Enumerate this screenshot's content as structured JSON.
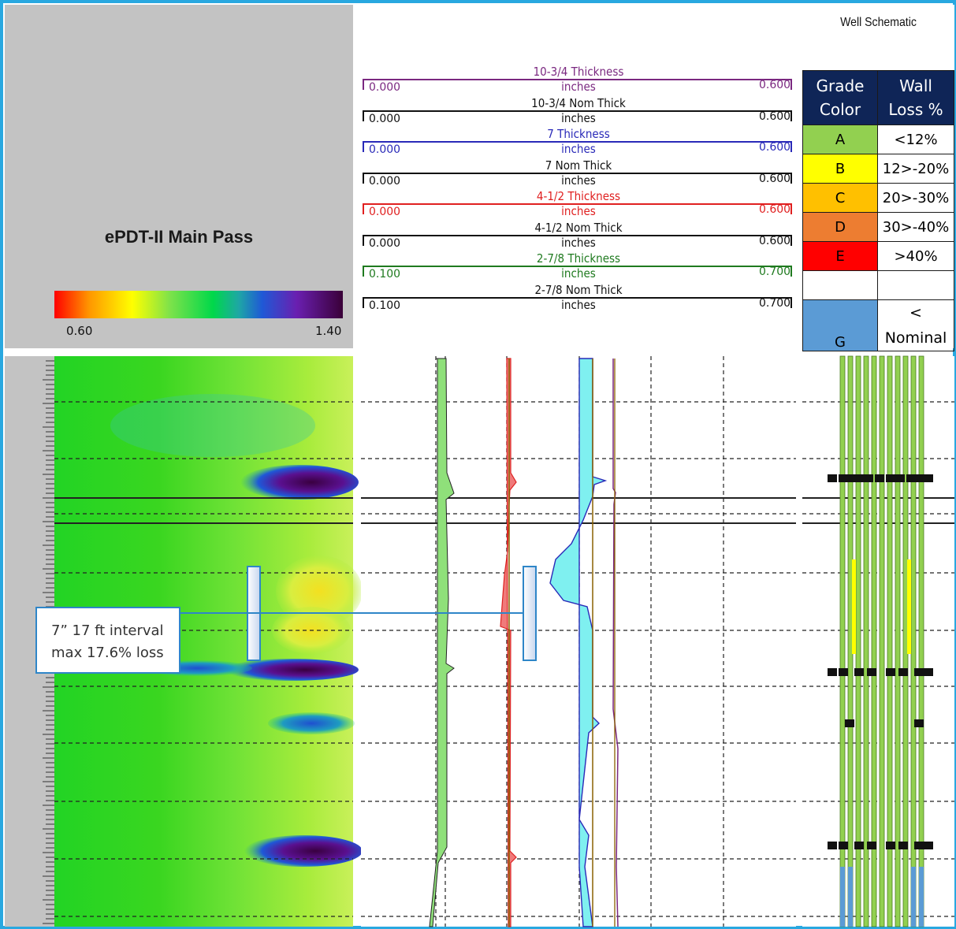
{
  "image_panel": {
    "title": "ePDT-II Main Pass",
    "colorbar_min": "0.60",
    "colorbar_max": "1.40"
  },
  "track_header": {
    "curves": [
      {
        "label": "10-3/4  Thickness",
        "unit": "inches",
        "min": "0.000",
        "max": "0.600",
        "color": "#7a2880"
      },
      {
        "label": "10-3/4  Nom  Thick",
        "unit": "inches",
        "min": "0.000",
        "max": "0.600",
        "color": "#111111"
      },
      {
        "label": "7  Thickness",
        "unit": "inches",
        "min": "0.000",
        "max": "0.600",
        "color": "#2a2ab8"
      },
      {
        "label": "7  Nom  Thick",
        "unit": "inches",
        "min": "0.000",
        "max": "0.600",
        "color": "#111111"
      },
      {
        "label": "4-1/2  Thickness",
        "unit": "inches",
        "min": "0.000",
        "max": "0.600",
        "color": "#e02020"
      },
      {
        "label": "4-1/2  Nom  Thick",
        "unit": "inches",
        "min": "0.000",
        "max": "0.600",
        "color": "#111111"
      },
      {
        "label": "2-7/8  Thickness",
        "unit": "inches",
        "min": "0.100",
        "max": "0.700",
        "color": "#1f7a1f"
      },
      {
        "label": "2-7/8  Nom  Thick",
        "unit": "inches",
        "min": "0.100",
        "max": "0.700",
        "color": "#111111"
      }
    ]
  },
  "well_schematic": {
    "title": "Well Schematic",
    "headers": [
      "Grade Color",
      "Wall Loss %"
    ],
    "grades": [
      {
        "grade": "A",
        "loss": "<12%",
        "color": "#92d050"
      },
      {
        "grade": "B",
        "loss": "12>-20%",
        "color": "#ffff00"
      },
      {
        "grade": "C",
        "loss": "20>-30%",
        "color": "#ffc000"
      },
      {
        "grade": "D",
        "loss": "30>-40%",
        "color": "#ed7d31"
      },
      {
        "grade": "E",
        "loss": ">40%",
        "color": "#ff0000"
      },
      {
        "grade": "",
        "loss": "",
        "color": "#ffffff"
      },
      {
        "grade": "G",
        "loss": "< Nominal",
        "color": "#5b9bd5"
      }
    ]
  },
  "callout": {
    "line1": "7” 17 ft interval",
    "line2": "max 17.6% loss"
  },
  "colors": {
    "frame": "#29a8e0",
    "callout_border": "#2e86c8",
    "fill_7in": "#7ff0f0",
    "fill_4in": "#f07a7a",
    "fill_2in": "#8fe07a"
  }
}
